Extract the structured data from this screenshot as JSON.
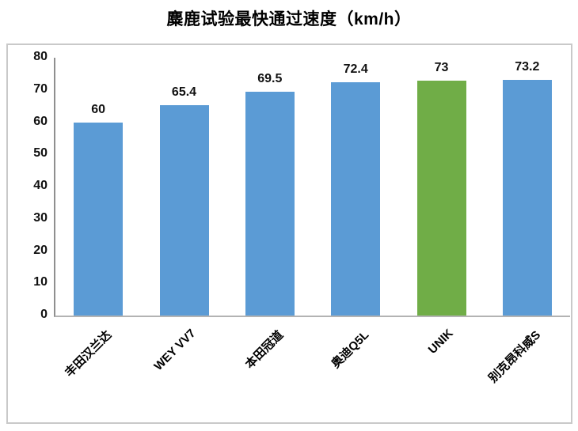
{
  "chart_data": {
    "type": "bar",
    "title": "麋鹿试验最快通过速度（km/h）",
    "categories": [
      "丰田汉兰达",
      "WEY VV7",
      "本田冠道",
      "奥迪Q5L",
      "UNIK",
      "别克昂科威S"
    ],
    "values": [
      60,
      65.4,
      69.5,
      72.4,
      73,
      73.2
    ],
    "data_labels": [
      "60",
      "65.4",
      "69.5",
      "72.4",
      "73",
      "73.2"
    ],
    "bar_colors": [
      "#5B9BD5",
      "#5B9BD5",
      "#5B9BD5",
      "#5B9BD5",
      "#70AD47",
      "#5B9BD5"
    ],
    "highlight_index": 4,
    "xlabel": "",
    "ylabel": "",
    "ylim": [
      0,
      80
    ],
    "yticks": [
      0,
      10,
      20,
      30,
      40,
      50,
      60,
      70,
      80
    ],
    "grid": false,
    "legend": false,
    "colors": {
      "default_bar": "#5B9BD5",
      "highlight_bar": "#70AD47",
      "chart_border": "#c9c9c9",
      "y_axis_line": "#8f8f8f",
      "x_axis_line": "#b3b3b3",
      "text": "#000000"
    }
  }
}
